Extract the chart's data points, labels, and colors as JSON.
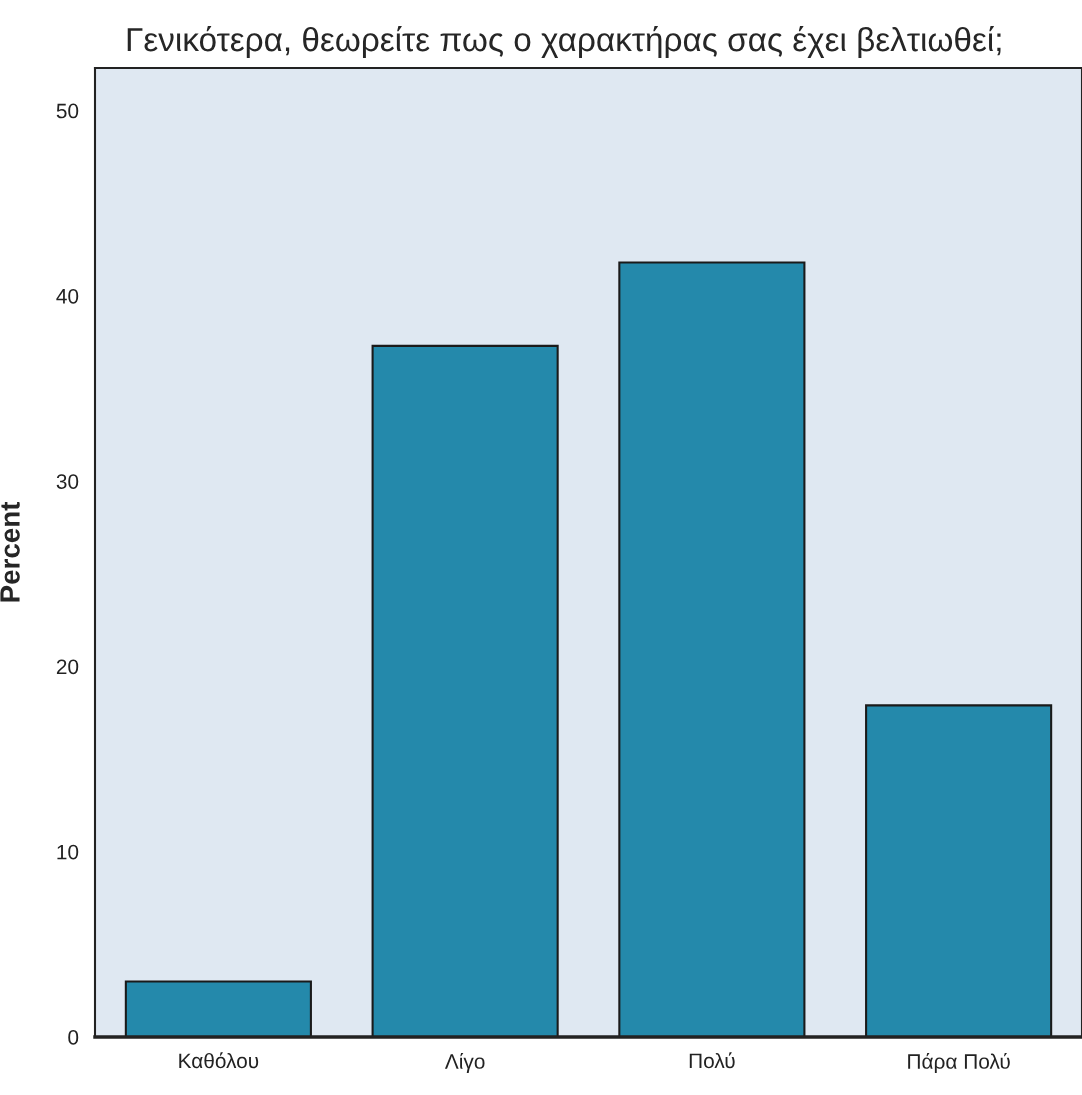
{
  "chart_data": {
    "type": "bar",
    "title": "Γενικότερα, θεωρείτε πως ο χαρακτήρας σας έχει βελτιωθεί;",
    "ylabel": "Percent",
    "categories": [
      "Καθόλου",
      "Λίγο",
      "Πολύ",
      "Πάρα Πολύ"
    ],
    "values": [
      3.0,
      37.3,
      41.8,
      17.9
    ],
    "color": "#2489ab",
    "ylim": [
      0,
      52.3
    ],
    "yticks": [
      0,
      10,
      20,
      30,
      40,
      50
    ],
    "grid": false
  }
}
